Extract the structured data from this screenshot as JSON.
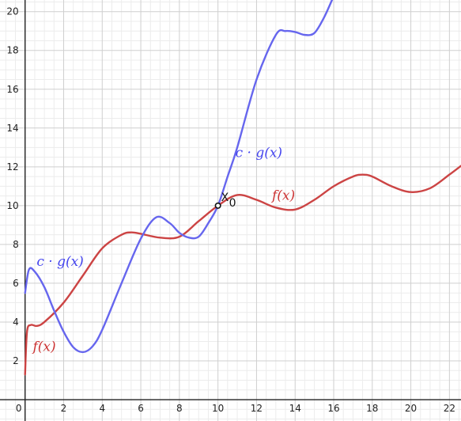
{
  "chart_data": {
    "type": "line",
    "xlim": [
      -1.3,
      22.6
    ],
    "ylim": [
      -1.1,
      20.6
    ],
    "grid": true,
    "minor_grid": true,
    "x_ticks": [
      "0",
      "2",
      "4",
      "6",
      "8",
      "10",
      "12",
      "14",
      "16",
      "18",
      "20",
      "22"
    ],
    "y_ticks": [
      "2",
      "4",
      "6",
      "8",
      "10",
      "12",
      "14",
      "16",
      "18",
      "20"
    ],
    "series": [
      {
        "name": "f(x)",
        "color": "#cc4444",
        "x": [
          0,
          0.1,
          0.3,
          0.6,
          1.0,
          2.0,
          3.0,
          4.0,
          5.0,
          5.5,
          6.0,
          7.0,
          8.0,
          9.0,
          10.0,
          11.0,
          12.0,
          13.0,
          14.0,
          15.0,
          16.0,
          17.0,
          17.5,
          18.0,
          19.0,
          20.0,
          21.0,
          22.0,
          22.6
        ],
        "y": [
          1.3,
          3.5,
          3.85,
          3.8,
          4.0,
          5.0,
          6.4,
          7.8,
          8.5,
          8.62,
          8.55,
          8.35,
          8.4,
          9.2,
          10.0,
          10.55,
          10.3,
          9.9,
          9.8,
          10.3,
          11.0,
          11.5,
          11.6,
          11.5,
          11.0,
          10.7,
          10.9,
          11.6,
          12.05
        ]
      },
      {
        "name": "c · g(x)",
        "color": "#6666ee",
        "x": [
          0,
          0.2,
          0.5,
          1.0,
          1.5,
          2.0,
          2.5,
          3.0,
          3.5,
          4.0,
          5.0,
          6.0,
          6.8,
          7.5,
          8.0,
          8.5,
          9.0,
          9.5,
          10.0,
          10.5,
          11.0,
          12.0,
          13.0,
          13.5,
          14.0,
          14.5,
          15.0,
          15.5,
          16.0
        ],
        "y": [
          5.5,
          6.7,
          6.6,
          5.8,
          4.6,
          3.5,
          2.7,
          2.45,
          2.75,
          3.6,
          6.0,
          8.3,
          9.4,
          9.1,
          8.6,
          8.35,
          8.4,
          9.1,
          10.0,
          11.5,
          13.0,
          16.5,
          18.8,
          19.0,
          18.95,
          18.8,
          18.9,
          19.7,
          20.8
        ]
      }
    ],
    "annotations": [
      {
        "text": "c · g(x)",
        "color": "#4444ee",
        "x": 10.9,
        "y": 12.5
      },
      {
        "text": "c · g(x)",
        "color": "#4444ee",
        "x": 0.6,
        "y": 6.9
      },
      {
        "text": "f(x)",
        "color": "#cc3333",
        "x": 12.8,
        "y": 10.3
      },
      {
        "text": "f(x)",
        "color": "#cc3333",
        "x": 0.4,
        "y": 2.5
      }
    ],
    "point": {
      "label": "X",
      "subscript": "0",
      "x": 10,
      "y": 10
    }
  }
}
